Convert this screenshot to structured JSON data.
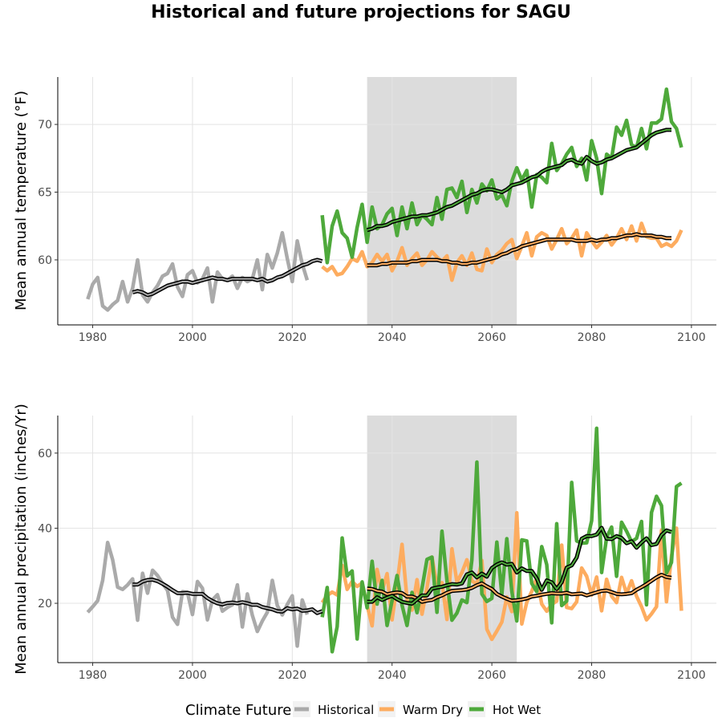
{
  "title": "Historical and future projections for SAGU",
  "colors": {
    "historical": "#aaaaaa",
    "warm_dry": "#fdac5f",
    "hot_wet": "#4ea93b",
    "smooth": "#000000",
    "band": "#dcdcdc",
    "grid": "#e3e3e3"
  },
  "legend": {
    "title": "Climate Future",
    "items": [
      {
        "label": "Historical",
        "color": "#aaaaaa"
      },
      {
        "label": "Warm Dry",
        "color": "#fdac5f"
      },
      {
        "label": "Hot Wet",
        "color": "#4ea93b"
      }
    ]
  },
  "chart_data": [
    {
      "type": "line",
      "ylabel": "Mean annual temperature (°F)",
      "xlabel": "",
      "xlim": [
        1973,
        2105
      ],
      "ylim": [
        55.2,
        73.5
      ],
      "xticks": [
        1980,
        2000,
        2020,
        2040,
        2060,
        2080,
        2100
      ],
      "yticks": [
        60,
        65,
        70
      ],
      "band": {
        "x": [
          2035,
          2065
        ]
      },
      "grid": true,
      "series": [
        {
          "name": "Historical",
          "key": "historical",
          "x_start": 1979,
          "values": [
            57.1,
            58.2,
            58.7,
            56.6,
            56.3,
            56.7,
            57.0,
            58.4,
            56.9,
            57.9,
            60.0,
            57.4,
            56.9,
            57.6,
            58.1,
            58.8,
            59.0,
            59.7,
            58.0,
            57.3,
            58.9,
            59.2,
            58.3,
            58.6,
            59.4,
            56.9,
            59.1,
            58.6,
            58.5,
            58.8,
            57.9,
            58.7,
            58.4,
            58.6,
            60.0,
            57.8,
            60.4,
            59.4,
            60.5,
            62.0,
            60.1,
            58.4,
            61.4,
            59.7,
            58.5
          ]
        },
        {
          "name": "Historical smooth",
          "key": "historical",
          "smooth": true,
          "x_start": 1988,
          "values": [
            57.6,
            57.7,
            57.6,
            57.4,
            57.5,
            57.7,
            57.9,
            58.1,
            58.2,
            58.3,
            58.4,
            58.4,
            58.3,
            58.4,
            58.5,
            58.6,
            58.7,
            58.6,
            58.6,
            58.5,
            58.6,
            58.6,
            58.6,
            58.6,
            58.6,
            58.5,
            58.6,
            58.4,
            58.5,
            58.7,
            58.8,
            59.0,
            59.2,
            59.4,
            59.6,
            59.7,
            59.9,
            60.0,
            59.9
          ]
        },
        {
          "name": "Warm Dry",
          "key": "warm_dry",
          "x_start": 2026,
          "values": [
            59.5,
            59.2,
            59.5,
            58.9,
            59.0,
            59.5,
            60.1,
            59.9,
            60.6,
            59.5,
            59.8,
            60.4,
            59.9,
            60.4,
            59.2,
            59.9,
            60.9,
            59.6,
            60.1,
            60.5,
            59.6,
            60.0,
            60.6,
            60.2,
            59.9,
            60.3,
            58.5,
            59.8,
            60.3,
            59.6,
            60.5,
            59.3,
            59.2,
            60.8,
            59.8,
            60.4,
            60.7,
            61.2,
            61.5,
            60.1,
            61.0,
            62.0,
            60.3,
            61.7,
            62.0,
            61.8,
            60.8,
            61.5,
            62.3,
            61.2,
            61.6,
            62.2,
            60.3,
            62.0,
            61.4,
            60.9,
            61.3,
            61.8,
            61.1,
            61.6,
            62.3,
            61.5,
            62.5,
            61.4,
            62.7,
            61.7,
            61.6,
            61.6,
            61.0,
            61.2,
            61.0,
            61.4,
            62.2
          ]
        },
        {
          "name": "Warm Dry smooth",
          "key": "warm_dry",
          "smooth": true,
          "x_start": 2035,
          "values": [
            59.6,
            59.6,
            59.6,
            59.7,
            59.7,
            59.8,
            59.8,
            59.8,
            59.8,
            59.9,
            59.9,
            60.0,
            60.0,
            60.0,
            60.0,
            59.9,
            59.9,
            59.8,
            59.8,
            59.7,
            59.7,
            59.8,
            59.8,
            59.9,
            60.0,
            60.1,
            60.2,
            60.4,
            60.5,
            60.7,
            60.8,
            61.0,
            61.1,
            61.2,
            61.3,
            61.4,
            61.5,
            61.5,
            61.5,
            61.5,
            61.5,
            61.5,
            61.4,
            61.4,
            61.4,
            61.5,
            61.4,
            61.5,
            61.5,
            61.6,
            61.6,
            61.7,
            61.8,
            61.8,
            61.9,
            61.8,
            61.8,
            61.8,
            61.7,
            61.7,
            61.6,
            61.6
          ]
        },
        {
          "name": "Hot Wet",
          "key": "hot_wet",
          "x_start": 2026,
          "values": [
            63.3,
            59.8,
            62.5,
            63.6,
            62.0,
            61.6,
            60.2,
            62.4,
            64.1,
            61.3,
            63.9,
            62.3,
            62.6,
            63.4,
            63.8,
            61.8,
            63.9,
            62.3,
            64.2,
            62.6,
            63.3,
            63.0,
            62.6,
            64.6,
            63.0,
            65.2,
            65.3,
            64.6,
            65.8,
            63.5,
            65.2,
            64.2,
            65.6,
            65.1,
            65.9,
            64.5,
            64.8,
            64.0,
            65.8,
            66.8,
            65.9,
            66.6,
            63.9,
            66.3,
            66.1,
            65.7,
            68.6,
            66.6,
            67.1,
            67.8,
            68.3,
            66.9,
            67.5,
            65.9,
            68.8,
            67.5,
            64.9,
            67.8,
            67.5,
            69.8,
            69.2,
            70.3,
            68.5,
            68.3,
            69.7,
            68.2,
            70.1,
            70.1,
            70.4,
            72.6,
            70.2,
            69.7,
            68.3
          ]
        },
        {
          "name": "Hot Wet smooth",
          "key": "hot_wet",
          "smooth": true,
          "x_start": 2035,
          "values": [
            62.2,
            62.3,
            62.5,
            62.5,
            62.6,
            62.8,
            62.9,
            63.0,
            63.1,
            63.2,
            63.2,
            63.3,
            63.3,
            63.4,
            63.5,
            63.7,
            63.9,
            64.0,
            64.2,
            64.4,
            64.6,
            64.8,
            64.9,
            65.1,
            65.2,
            65.2,
            65.1,
            65.0,
            65.2,
            65.5,
            65.6,
            65.7,
            65.9,
            66.1,
            66.2,
            66.5,
            66.7,
            66.8,
            66.9,
            67.0,
            67.3,
            67.4,
            67.2,
            67.1,
            67.6,
            67.3,
            67.1,
            67.2,
            67.4,
            67.5,
            67.7,
            67.9,
            68.1,
            68.2,
            68.3,
            68.6,
            68.9,
            69.2,
            69.4,
            69.5,
            69.6,
            69.6
          ]
        }
      ]
    },
    {
      "type": "line",
      "ylabel": "Mean annual precipitation (inches/Yr)",
      "xlabel": "",
      "xlim": [
        1973,
        2105
      ],
      "ylim": [
        4.2,
        70
      ],
      "xticks": [
        1980,
        2000,
        2020,
        2040,
        2060,
        2080,
        2100
      ],
      "yticks": [
        20,
        40,
        60
      ],
      "band": {
        "x": [
          2035,
          2065
        ]
      },
      "grid": true,
      "series": [
        {
          "name": "Historical",
          "key": "historical",
          "x_start": 1979,
          "values": [
            17.6,
            19.1,
            20.7,
            26.1,
            36.2,
            31.6,
            24.3,
            23.7,
            24.9,
            26.5,
            15.5,
            28.0,
            22.7,
            28.8,
            27.4,
            25.3,
            23.4,
            16.3,
            14.4,
            23.1,
            22.9,
            17.0,
            25.8,
            24.0,
            15.6,
            20.9,
            22.3,
            17.9,
            18.9,
            19.6,
            24.9,
            13.7,
            22.5,
            16.8,
            12.5,
            15.3,
            17.6,
            26.1,
            19.4,
            16.9,
            19.7,
            22.0,
            8.6,
            20.9,
            17.0
          ]
        },
        {
          "name": "Historical smooth",
          "key": "historical",
          "smooth": true,
          "x_start": 1988,
          "values": [
            25.0,
            25.0,
            25.8,
            26.2,
            26.3,
            25.9,
            25.2,
            24.4,
            23.5,
            22.7,
            22.7,
            22.8,
            22.5,
            22.5,
            22.5,
            21.4,
            20.6,
            20.0,
            19.7,
            20.1,
            20.2,
            20.0,
            20.3,
            20.0,
            19.6,
            19.6,
            19.0,
            18.7,
            18.4,
            17.9,
            17.8,
            18.7,
            18.4,
            18.6,
            18.0,
            18.1,
            18.4,
            17.4,
            17.9
          ]
        },
        {
          "name": "Warm Dry",
          "key": "warm_dry",
          "x_start": 2026,
          "values": [
            20.2,
            22.1,
            23.0,
            22.2,
            30.1,
            23.7,
            25.8,
            24.5,
            25.4,
            19.5,
            14.0,
            29.0,
            23.2,
            27.9,
            15.6,
            25.0,
            35.7,
            21.1,
            18.2,
            26.3,
            17.1,
            24.2,
            32.3,
            24.7,
            25.5,
            15.7,
            34.5,
            25.6,
            28.2,
            31.6,
            26.0,
            25.1,
            31.4,
            13.1,
            10.4,
            12.6,
            15.0,
            21.7,
            17.8,
            44.1,
            14.5,
            20.3,
            23.2,
            26.8,
            19.8,
            17.9,
            19.7,
            20.6,
            35.5,
            18.9,
            18.6,
            20.4,
            29.4,
            27.2,
            22.2,
            27.0,
            18.0,
            26.4,
            21.9,
            20.2,
            26.9,
            22.6,
            26.0,
            21.9,
            19.1,
            15.6,
            17.2,
            19.1,
            39.5,
            20.4,
            32.5,
            40.0,
            18.0
          ]
        },
        {
          "name": "Warm Dry smooth",
          "key": "warm_dry",
          "smooth": true,
          "x_start": 2035,
          "values": [
            23.9,
            23.8,
            23.3,
            23.1,
            22.4,
            22.7,
            22.9,
            22.7,
            21.8,
            21.8,
            21.3,
            20.4,
            20.7,
            20.9,
            21.6,
            22.1,
            22.8,
            23.3,
            23.4,
            23.5,
            23.7,
            24.1,
            24.8,
            25.3,
            24.5,
            23.8,
            22.5,
            21.8,
            21.2,
            20.7,
            20.8,
            21.0,
            21.3,
            21.8,
            22.0,
            22.3,
            22.5,
            22.7,
            22.6,
            22.6,
            22.8,
            22.4,
            22.5,
            22.6,
            22.1,
            22.5,
            22.9,
            23.3,
            23.4,
            23.0,
            22.5,
            22.4,
            22.5,
            22.7,
            23.6,
            24.3,
            25.1,
            26.0,
            26.9,
            27.6,
            27.0,
            26.8
          ]
        },
        {
          "name": "Hot Wet",
          "key": "hot_wet",
          "x_start": 2026,
          "values": [
            16.3,
            24.2,
            7.1,
            13.8,
            37.4,
            27.3,
            28.6,
            10.5,
            25.7,
            18.8,
            31.2,
            19.8,
            26.1,
            14.1,
            20.7,
            27.4,
            19.5,
            14.1,
            22.9,
            17.5,
            24.0,
            31.7,
            32.3,
            17.6,
            39.2,
            26.0,
            15.5,
            17.4,
            20.9,
            20.2,
            31.6,
            57.6,
            22.5,
            20.5,
            21.3,
            36.3,
            22.3,
            37.2,
            23.2,
            15.3,
            36.9,
            36.6,
            25.3,
            23.1,
            35.1,
            30.3,
            14.8,
            41.2,
            19.4,
            20.6,
            52.2,
            36.6,
            36.0,
            36.1,
            42.0,
            66.6,
            28.2,
            37.5,
            40.3,
            27.2,
            41.6,
            39.2,
            36.4,
            37.3,
            41.8,
            19.6,
            44.2,
            48.5,
            46.0,
            28.1,
            30.9,
            51.1,
            52.0
          ]
        },
        {
          "name": "Hot Wet smooth",
          "key": "hot_wet",
          "smooth": true,
          "x_start": 2035,
          "values": [
            20.4,
            20.4,
            21.6,
            20.9,
            21.5,
            22.0,
            21.1,
            20.4,
            20.1,
            19.9,
            21.0,
            22.1,
            22.1,
            23.9,
            24.2,
            24.4,
            24.8,
            25.1,
            25.0,
            25.3,
            27.7,
            28.2,
            26.9,
            27.9,
            27.1,
            29.4,
            30.3,
            30.9,
            30.3,
            30.5,
            28.2,
            29.3,
            28.6,
            28.6,
            26.6,
            23.6,
            26.1,
            25.6,
            23.8,
            25.6,
            29.5,
            30.1,
            32.2,
            37.2,
            37.9,
            37.9,
            38.3,
            40.1,
            37.2,
            37.1,
            37.9,
            37.4,
            36.0,
            36.5,
            34.8,
            36.2,
            37.3,
            35.5,
            35.8,
            38.2,
            39.4,
            39.0
          ]
        }
      ]
    }
  ]
}
